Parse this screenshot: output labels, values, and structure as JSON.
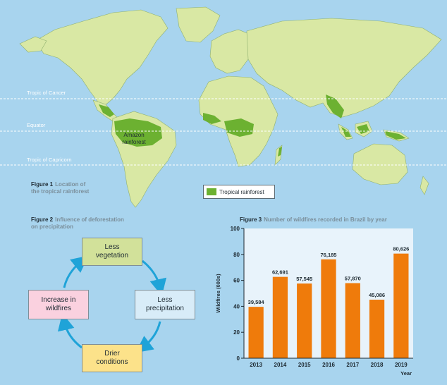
{
  "map": {
    "lines": [
      {
        "key": "tropic-of-cancer",
        "label": "Tropic of Cancer"
      },
      {
        "key": "equator",
        "label": "Equator"
      },
      {
        "key": "tropic-of-capricorn",
        "label": "Tropic of Capricorn"
      }
    ],
    "amazon_label_line1": "Amazon",
    "amazon_label_line2": "rainforest",
    "legend_label": "Tropical rainforest",
    "colors": {
      "ocean": "#a8d4ee",
      "land": "#d9e8a4",
      "rainforest": "#6cb131"
    }
  },
  "figure1": {
    "number": "Figure 1",
    "caption_line1": "Location of",
    "caption_line2": "the tropical rainforest"
  },
  "figure2": {
    "number": "Figure 2",
    "caption_line1": "Influence of deforestation",
    "caption_line2": "on precipitation",
    "cycle": {
      "top_line1": "Less",
      "top_line2": "vegetation",
      "right_line1": "Less",
      "right_line2": "precipitation",
      "bottom_line1": "Drier",
      "bottom_line2": "conditions",
      "left_line1": "Increase in",
      "left_line2": "wildfires"
    },
    "colors": {
      "arrow": "#1fa3d8",
      "top": "#d2e19a",
      "right": "#d8ecf8",
      "bottom": "#fce28a",
      "left": "#fad1df"
    }
  },
  "figure3": {
    "number": "Figure 3",
    "caption": "Number of wildfires recorded in Brazil by year"
  },
  "chart_data": {
    "type": "bar",
    "title": "Number of wildfires recorded in Brazil by year",
    "xlabel": "Year",
    "ylabel": "Wildfires (000s)",
    "categories": [
      "2013",
      "2014",
      "2015",
      "2016",
      "2017",
      "2018",
      "2019"
    ],
    "values": [
      39584,
      62691,
      57545,
      76185,
      57870,
      45086,
      80626
    ],
    "data_labels": [
      "39,584",
      "62,691",
      "57,545",
      "76,185",
      "57,870",
      "45,086",
      "80,626"
    ],
    "y_ticks": [
      "0",
      "20",
      "40",
      "60",
      "80",
      "100"
    ],
    "ylim": [
      0,
      100000
    ],
    "grid": false,
    "bar_color": "#ef7b0b",
    "plot_background": "#e8f3fb"
  }
}
